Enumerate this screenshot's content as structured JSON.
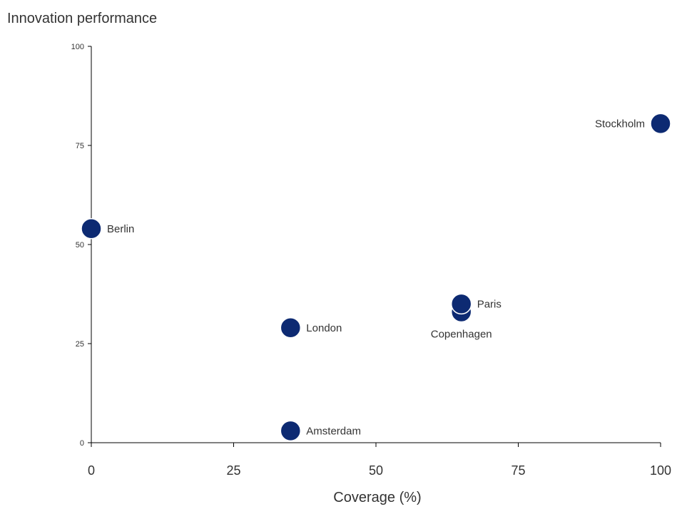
{
  "chart_data": {
    "type": "scatter",
    "title": "",
    "xlabel": "Coverage (%)",
    "ylabel": "Innovation performance",
    "xlim": [
      0,
      100
    ],
    "ylim": [
      0,
      100
    ],
    "xticks": [
      "0",
      "25",
      "50",
      "75",
      "100"
    ],
    "yticks": [
      "0",
      "25",
      "50",
      "75",
      "100"
    ],
    "grid": false,
    "point_color": "#0d2a72",
    "label_color": "#333333",
    "points": [
      {
        "label": "Stockholm",
        "x": 100,
        "y": 80.5,
        "label_pos": "left"
      },
      {
        "label": "Berlin",
        "x": 0,
        "y": 54,
        "label_pos": "right"
      },
      {
        "label": "Paris",
        "x": 65,
        "y": 35,
        "label_pos": "right"
      },
      {
        "label": "Copenhagen",
        "x": 65,
        "y": 33,
        "label_pos": "below"
      },
      {
        "label": "London",
        "x": 35,
        "y": 29,
        "label_pos": "right"
      },
      {
        "label": "Amsterdam",
        "x": 35,
        "y": 3,
        "label_pos": "right"
      }
    ]
  }
}
